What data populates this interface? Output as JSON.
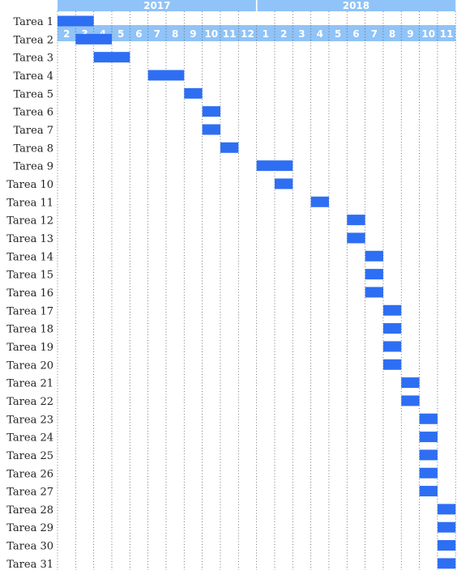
{
  "chart_data": {
    "type": "gantt",
    "colors": {
      "bar": "#2e6ef2",
      "header": "#90c3f7",
      "header_text": "#ffffff",
      "grid": "#555555"
    },
    "grid": "dotted-vertical",
    "years": [
      {
        "label": "2017",
        "months": [
          "2",
          "3",
          "4",
          "5",
          "6",
          "7",
          "8",
          "9",
          "10",
          "11",
          "12"
        ]
      },
      {
        "label": "2018",
        "months": [
          "1",
          "2",
          "3",
          "4",
          "5",
          "6",
          "7",
          "8",
          "9",
          "10",
          "11"
        ]
      }
    ],
    "tasks": [
      {
        "label": "Tarea 1",
        "start": "2017-02",
        "end": "2017-03"
      },
      {
        "label": "Tarea 2",
        "start": "2017-03",
        "end": "2017-04"
      },
      {
        "label": "Tarea 3",
        "start": "2017-04",
        "end": "2017-05"
      },
      {
        "label": "Tarea 4",
        "start": "2017-07",
        "end": "2017-08"
      },
      {
        "label": "Tarea 5",
        "start": "2017-09",
        "end": "2017-09"
      },
      {
        "label": "Tarea 6",
        "start": "2017-10",
        "end": "2017-10"
      },
      {
        "label": "Tarea 7",
        "start": "2017-10",
        "end": "2017-10"
      },
      {
        "label": "Tarea 8",
        "start": "2017-11",
        "end": "2017-11"
      },
      {
        "label": "Tarea 9",
        "start": "2018-01",
        "end": "2018-02"
      },
      {
        "label": "Tarea 10",
        "start": "2018-02",
        "end": "2018-02"
      },
      {
        "label": "Tarea 11",
        "start": "2018-04",
        "end": "2018-04"
      },
      {
        "label": "Tarea 12",
        "start": "2018-06",
        "end": "2018-06"
      },
      {
        "label": "Tarea 13",
        "start": "2018-06",
        "end": "2018-06"
      },
      {
        "label": "Tarea 14",
        "start": "2018-07",
        "end": "2018-07"
      },
      {
        "label": "Tarea 15",
        "start": "2018-07",
        "end": "2018-07"
      },
      {
        "label": "Tarea 16",
        "start": "2018-07",
        "end": "2018-07"
      },
      {
        "label": "Tarea 17",
        "start": "2018-08",
        "end": "2018-08"
      },
      {
        "label": "Tarea 18",
        "start": "2018-08",
        "end": "2018-08"
      },
      {
        "label": "Tarea 19",
        "start": "2018-08",
        "end": "2018-08"
      },
      {
        "label": "Tarea 20",
        "start": "2018-08",
        "end": "2018-08"
      },
      {
        "label": "Tarea 21",
        "start": "2018-09",
        "end": "2018-09"
      },
      {
        "label": "Tarea 22",
        "start": "2018-09",
        "end": "2018-09"
      },
      {
        "label": "Tarea 23",
        "start": "2018-10",
        "end": "2018-10"
      },
      {
        "label": "Tarea 24",
        "start": "2018-10",
        "end": "2018-10"
      },
      {
        "label": "Tarea 25",
        "start": "2018-10",
        "end": "2018-10"
      },
      {
        "label": "Tarea 26",
        "start": "2018-10",
        "end": "2018-10"
      },
      {
        "label": "Tarea 27",
        "start": "2018-10",
        "end": "2018-10"
      },
      {
        "label": "Tarea 28",
        "start": "2018-11",
        "end": "2018-11"
      },
      {
        "label": "Tarea 29",
        "start": "2018-11",
        "end": "2018-11"
      },
      {
        "label": "Tarea 30",
        "start": "2018-11",
        "end": "2018-11"
      },
      {
        "label": "Tarea 31",
        "start": "2018-11",
        "end": "2018-11"
      }
    ]
  }
}
